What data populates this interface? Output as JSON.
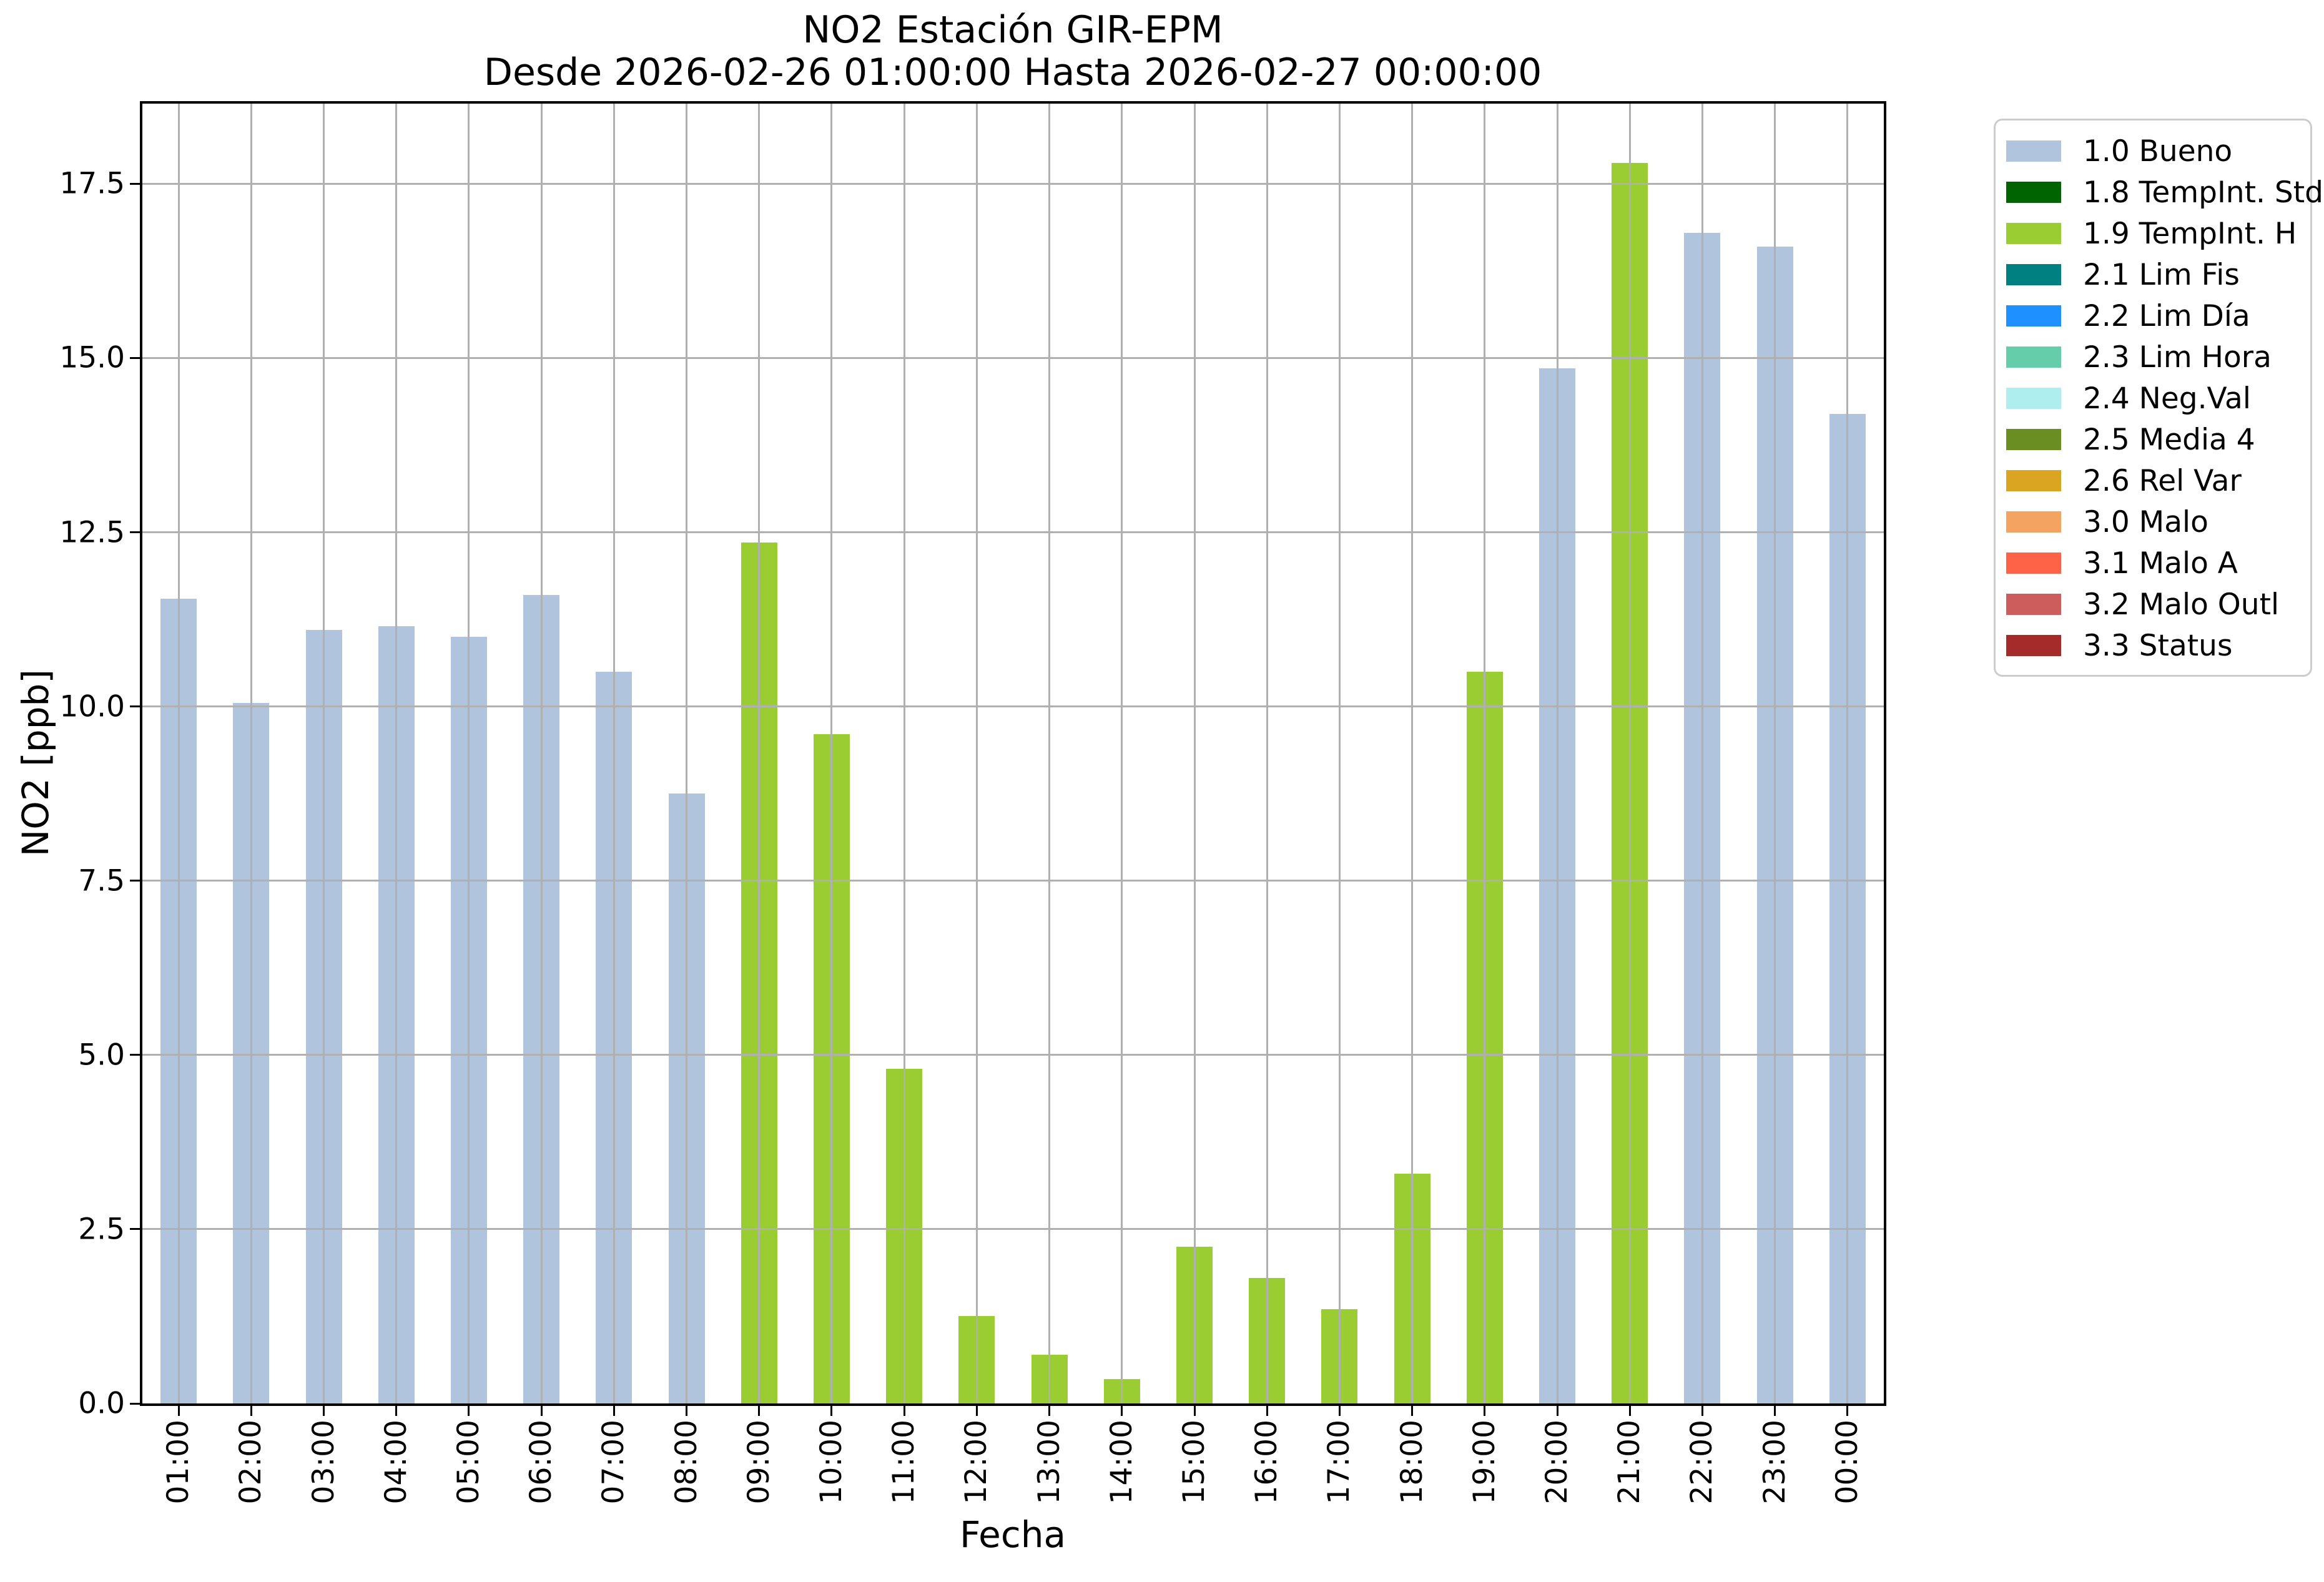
{
  "title": {
    "line1": "NO2 Estación GIR-EPM",
    "line2": "Desde 2026-02-26 01:00:00 Hasta 2026-02-27 00:00:00"
  },
  "chart_data": {
    "type": "bar",
    "title": "NO2 Estación GIR-EPM",
    "subtitle": "Desde 2026-02-26 01:00:00 Hasta 2026-02-27 00:00:00",
    "xlabel": "Fecha",
    "ylabel": "NO2 [ppb]",
    "ylim": [
      0,
      18.65
    ],
    "yticks": [
      0.0,
      2.5,
      5.0,
      7.5,
      10.0,
      12.5,
      15.0,
      17.5
    ],
    "ytick_labels": [
      "0.0",
      "2.5",
      "5.0",
      "7.5",
      "10.0",
      "12.5",
      "15.0",
      "17.5"
    ],
    "grid": true,
    "grid_color": "#b0b0b0",
    "legend_position": "outside-right",
    "categories": [
      "01:00",
      "02:00",
      "03:00",
      "04:00",
      "05:00",
      "06:00",
      "07:00",
      "08:00",
      "09:00",
      "10:00",
      "11:00",
      "12:00",
      "13:00",
      "14:00",
      "15:00",
      "16:00",
      "17:00",
      "18:00",
      "19:00",
      "20:00",
      "21:00",
      "22:00",
      "23:00",
      "00:00"
    ],
    "values": [
      11.55,
      10.05,
      11.1,
      11.15,
      11.0,
      11.6,
      10.5,
      8.75,
      12.35,
      9.6,
      4.8,
      1.25,
      0.7,
      0.35,
      2.25,
      1.8,
      1.35,
      3.3,
      10.5,
      14.85,
      17.8,
      16.8,
      16.6,
      14.2
    ],
    "bar_status": [
      "bueno",
      "bueno",
      "bueno",
      "bueno",
      "bueno",
      "bueno",
      "bueno",
      "bueno",
      "tempint_h",
      "tempint_h",
      "tempint_h",
      "tempint_h",
      "tempint_h",
      "tempint_h",
      "tempint_h",
      "tempint_h",
      "tempint_h",
      "tempint_h",
      "tempint_h",
      "bueno",
      "tempint_h",
      "bueno",
      "bueno",
      "bueno"
    ],
    "status_colors": {
      "bueno": "#b0c4de",
      "tempint_h": "#9acd32"
    },
    "legend": [
      {
        "label": "1.0 Bueno",
        "color": "#b0c4de"
      },
      {
        "label": "1.8 TempInt. Std",
        "color": "#006400"
      },
      {
        "label": "1.9 TempInt. H",
        "color": "#9acd32"
      },
      {
        "label": "2.1 Lim Fis",
        "color": "#008080"
      },
      {
        "label": "2.2 Lim Día",
        "color": "#1e90ff"
      },
      {
        "label": "2.3 Lim Hora",
        "color": "#66cdaa"
      },
      {
        "label": "2.4 Neg.Val",
        "color": "#afeeee"
      },
      {
        "label": "2.5 Media 4",
        "color": "#6b8e23"
      },
      {
        "label": "2.6 Rel Var",
        "color": "#daa520"
      },
      {
        "label": "3.0 Malo",
        "color": "#f4a460"
      },
      {
        "label": "3.1 Malo A",
        "color": "#ff6347"
      },
      {
        "label": "3.2 Malo Outl",
        "color": "#cd5c5c"
      },
      {
        "label": "3.3 Status",
        "color": "#a52a2a"
      }
    ]
  }
}
